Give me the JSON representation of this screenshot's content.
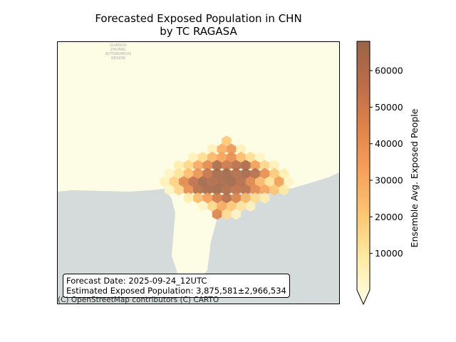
{
  "title": {
    "line1": "Forecasted Exposed Population in CHN",
    "line2": "by TC RAGASA"
  },
  "info": {
    "forecast_date": "Forecast Date: 2025-09-24_12UTC",
    "estimated_population": "Estimated Exposed Population: 3,875,581±2,966,534"
  },
  "attribution": "(C) OpenStreetMap contributors (C) CARTO",
  "basemap_labels": [
    "GUANGXI",
    "ZHUANG",
    "AUTONOMOUS",
    "REGION"
  ],
  "colorbar": {
    "label": "Ensemble Avg. Exposed People",
    "ticks": [
      10000,
      20000,
      30000,
      40000,
      50000,
      60000
    ],
    "tick_labels": [
      "10000",
      "20000",
      "30000",
      "40000",
      "50000",
      "60000"
    ],
    "min": 0,
    "max": 68000,
    "extend": "min",
    "colors": [
      "#fffde6",
      "#ffeca6",
      "#fdc874",
      "#f7a25a",
      "#e0844a",
      "#bb6d48",
      "#9b6448"
    ]
  },
  "colors": {
    "land": "#fdfde6",
    "sea": "#d5dadb",
    "frame": "#000000"
  },
  "chart_data": {
    "type": "heatmap",
    "title": "Forecasted Exposed Population in CHN by TC RAGASA",
    "colorbar_label": "Ensemble Avg. Exposed People",
    "value_range": [
      0,
      68000
    ],
    "hex_rows": [
      {
        "row": 0,
        "values": [
          22000
        ]
      },
      {
        "row": 1,
        "values": [
          8000,
          30000,
          38000,
          8000
        ]
      },
      {
        "row": 2,
        "values": [
          8000,
          16000,
          28000,
          34000,
          42000,
          26000,
          16000,
          6000
        ]
      },
      {
        "row": 3,
        "values": [
          10000,
          18000,
          32000,
          44000,
          62000,
          52000,
          58000,
          62000,
          36000,
          18000,
          8000
        ]
      },
      {
        "row": 4,
        "values": [
          6000,
          14000,
          26000,
          40000,
          54000,
          64000,
          66000,
          60000,
          64000,
          58000,
          42000,
          22000,
          10000
        ]
      },
      {
        "row": 5,
        "values": [
          8000,
          20000,
          44000,
          56000,
          66000,
          62000,
          64000,
          66000,
          60000,
          46000,
          28000,
          14000,
          36000,
          6000
        ]
      },
      {
        "row": 6,
        "values": [
          6000,
          18000,
          42000,
          58000,
          64000,
          66000,
          62000,
          56000,
          58000,
          44000,
          34000,
          24000,
          12000
        ]
      },
      {
        "row": 7,
        "values": [
          10000,
          26000,
          36000,
          50000,
          58000,
          46000,
          28000,
          16000,
          10000
        ]
      },
      {
        "row": 8,
        "values": [
          6000,
          18000,
          32000,
          22000,
          14000,
          8000
        ]
      },
      {
        "row": 9,
        "values": [
          46000,
          16000,
          6000
        ]
      }
    ]
  }
}
